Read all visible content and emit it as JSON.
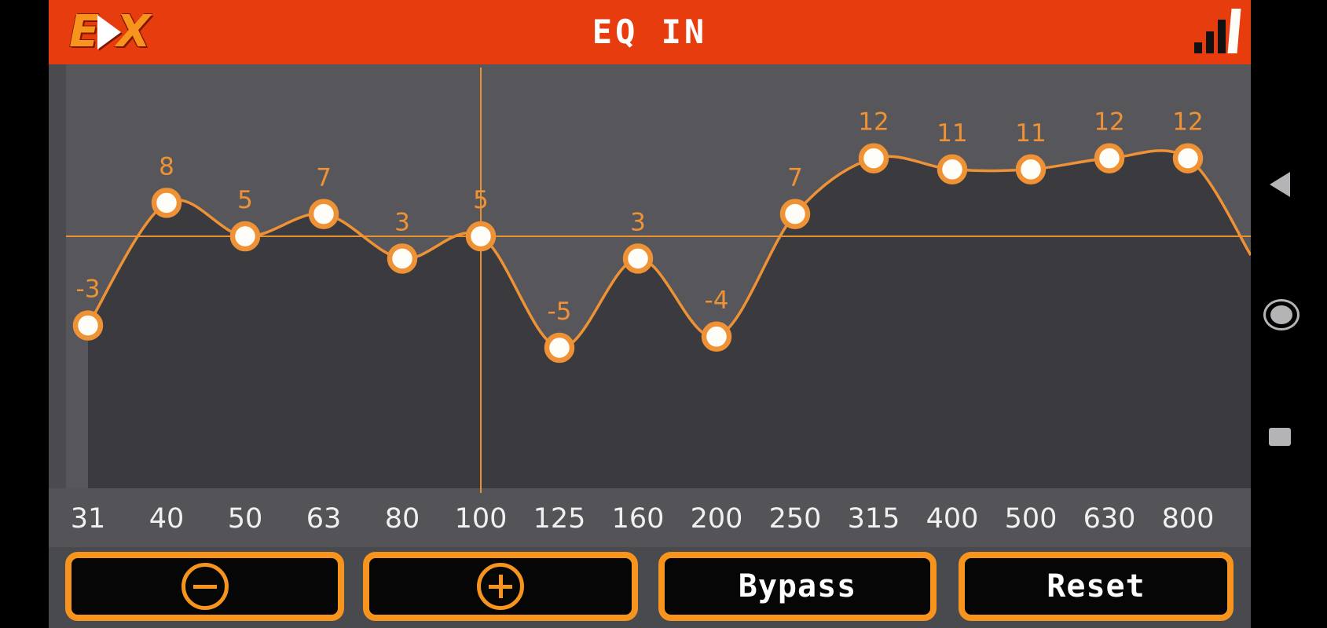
{
  "header": {
    "logo_text_1": "E",
    "logo_text_2": "X",
    "title": "EQ IN",
    "status_icon": "signal-bars-icon"
  },
  "chart_data": {
    "type": "line",
    "title": "EQ IN",
    "categories": [
      "31",
      "40",
      "50",
      "63",
      "80",
      "100",
      "125",
      "160",
      "200",
      "250",
      "315",
      "400",
      "500",
      "630",
      "800"
    ],
    "values": [
      -3,
      8,
      5,
      7,
      3,
      5,
      -5,
      3,
      -4,
      7,
      12,
      11,
      11,
      12,
      12
    ],
    "selected_band": "100",
    "selected_value": 5,
    "ylim": [
      -18,
      20
    ],
    "grid": "crosshair-on-selected-band",
    "legend": "none",
    "point_style": "white-circle-orange-ring",
    "accent_color": "#ee9235"
  },
  "buttons": [
    {
      "id": "decrease",
      "icon": "minus-circle-icon",
      "label": ""
    },
    {
      "id": "increase",
      "icon": "plus-circle-icon",
      "label": ""
    },
    {
      "id": "bypass",
      "label": "Bypass"
    },
    {
      "id": "reset",
      "label": "Reset"
    }
  ],
  "nav": {
    "back": "back-icon",
    "home": "home-icon",
    "recents": "recents-icon"
  },
  "colors": {
    "header_bg": "#e63c0e",
    "logo_orange": "#f7941d",
    "accent_orange": "#ee9235",
    "plot_bg": "#57575b",
    "under_curve_fill": "#3a3a3f",
    "label_band_bg": "#535358",
    "button_area_bg": "#494a4e",
    "button_fill": "#060606",
    "button_border": "#f7941d",
    "freq_label_color": "#f0f0f0",
    "nav_icon_gray": "#b4b4b6"
  }
}
